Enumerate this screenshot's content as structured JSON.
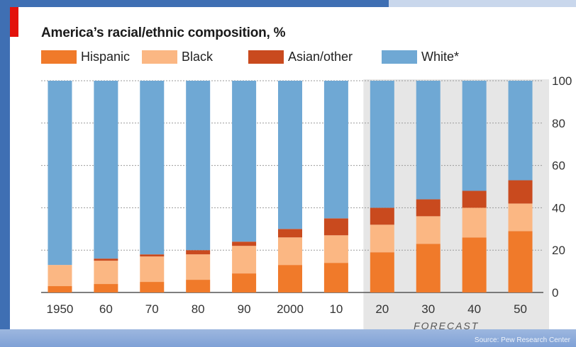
{
  "source": "Source: Pew Research Center",
  "colors": {
    "hispanic": "#f07a2a",
    "black": "#fbb783",
    "asian_other": "#c94a1e",
    "white": "#6fa8d4",
    "forecast_bg": "#e6e6e6",
    "accent": "#e3120b"
  },
  "chart_data": {
    "type": "bar",
    "stacked": true,
    "title": "America’s racial/ethnic composition, %",
    "categories": [
      "1950",
      "60",
      "70",
      "80",
      "90",
      "2000",
      "10",
      "20",
      "30",
      "40",
      "50"
    ],
    "forecast_label": "FORECAST",
    "forecast_from_index": 7,
    "ylim": [
      0,
      100
    ],
    "yticks": [
      0,
      20,
      40,
      60,
      80,
      100
    ],
    "grid": true,
    "y_axis_side": "right",
    "legend_position": "top-left",
    "series": [
      {
        "name": "Hispanic",
        "color_key": "hispanic",
        "values": [
          3,
          4,
          5,
          6,
          9,
          13,
          14,
          19,
          23,
          26,
          29
        ]
      },
      {
        "name": "Black",
        "color_key": "black",
        "values": [
          10,
          11,
          12,
          12,
          13,
          13,
          13,
          13,
          13,
          14,
          13
        ]
      },
      {
        "name": "Asian/other",
        "color_key": "asian_other",
        "values": [
          0,
          1,
          1,
          2,
          2,
          4,
          8,
          8,
          8,
          8,
          11
        ]
      },
      {
        "name": "White*",
        "color_key": "white",
        "values": [
          87,
          84,
          82,
          80,
          76,
          70,
          65,
          60,
          56,
          52,
          47
        ]
      }
    ]
  }
}
